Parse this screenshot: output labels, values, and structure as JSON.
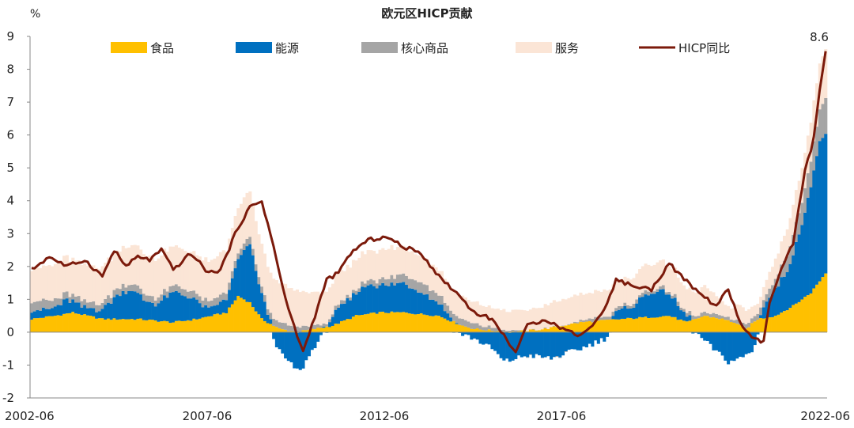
{
  "chart_data": {
    "type": "bar",
    "subtype": "stacked-bar-with-line",
    "title": "欧元区HICP贡献",
    "unit_label": "%",
    "ylim": [
      -2,
      9
    ],
    "yticks": [
      -2,
      -1,
      0,
      1,
      2,
      3,
      4,
      5,
      6,
      7,
      8,
      9
    ],
    "x_start": "2002-06",
    "x_end": "2022-06",
    "xtick_labels": [
      "2002-06",
      "2007-06",
      "2012-06",
      "2017-06",
      "2022-06"
    ],
    "grid": false,
    "legend_position": "top",
    "last_value_label": "8.6",
    "series": [
      {
        "name": "食品",
        "kind": "bar",
        "color": "#FFC000",
        "anchors": [
          [
            0,
            0.4
          ],
          [
            8,
            0.5
          ],
          [
            14,
            0.6
          ],
          [
            24,
            0.4
          ],
          [
            36,
            0.4
          ],
          [
            48,
            0.3
          ],
          [
            56,
            0.4
          ],
          [
            66,
            0.6
          ],
          [
            70,
            1.1
          ],
          [
            74,
            0.9
          ],
          [
            78,
            0.4
          ],
          [
            84,
            0.1
          ],
          [
            90,
            0.0
          ],
          [
            102,
            0.2
          ],
          [
            110,
            0.5
          ],
          [
            118,
            0.6
          ],
          [
            126,
            0.6
          ],
          [
            138,
            0.5
          ],
          [
            146,
            0.2
          ],
          [
            150,
            0.1
          ],
          [
            162,
            0.0
          ],
          [
            174,
            0.1
          ],
          [
            186,
            0.3
          ],
          [
            200,
            0.4
          ],
          [
            216,
            0.5
          ],
          [
            222,
            0.3
          ],
          [
            228,
            0.5
          ],
          [
            234,
            0.4
          ],
          [
            238,
            0.3
          ],
          [
            242,
            0.1
          ],
          [
            246,
            0.4
          ],
          [
            252,
            0.5
          ],
          [
            258,
            0.8
          ],
          [
            264,
            1.2
          ],
          [
            269,
            1.8
          ]
        ]
      },
      {
        "name": "能源",
        "kind": "bar",
        "color": "#0070C0",
        "anchors": [
          [
            0,
            0.3
          ],
          [
            6,
            0.2
          ],
          [
            12,
            0.4
          ],
          [
            18,
            0.2
          ],
          [
            24,
            0.3
          ],
          [
            30,
            0.8
          ],
          [
            34,
            0.9
          ],
          [
            38,
            0.6
          ],
          [
            42,
            0.5
          ],
          [
            48,
            0.9
          ],
          [
            54,
            0.7
          ],
          [
            60,
            0.2
          ],
          [
            66,
            0.4
          ],
          [
            70,
            1.1
          ],
          [
            74,
            1.8
          ],
          [
            76,
            1.2
          ],
          [
            80,
            0.3
          ],
          [
            84,
            -0.6
          ],
          [
            88,
            -1.0
          ],
          [
            91,
            -1.2
          ],
          [
            96,
            -0.4
          ],
          [
            102,
            0.3
          ],
          [
            108,
            0.6
          ],
          [
            114,
            0.9
          ],
          [
            120,
            0.8
          ],
          [
            126,
            0.9
          ],
          [
            132,
            0.7
          ],
          [
            138,
            0.4
          ],
          [
            144,
            0.0
          ],
          [
            150,
            -0.2
          ],
          [
            156,
            -0.5
          ],
          [
            160,
            -0.9
          ],
          [
            168,
            -0.7
          ],
          [
            176,
            -0.8
          ],
          [
            186,
            -0.5
          ],
          [
            194,
            -0.2
          ],
          [
            198,
            0.2
          ],
          [
            204,
            0.4
          ],
          [
            210,
            0.8
          ],
          [
            216,
            0.7
          ],
          [
            220,
            0.3
          ],
          [
            226,
            -0.1
          ],
          [
            232,
            -0.6
          ],
          [
            236,
            -0.9
          ],
          [
            240,
            -0.8
          ],
          [
            244,
            -0.6
          ],
          [
            248,
            0.4
          ],
          [
            252,
            0.8
          ],
          [
            256,
            1.2
          ],
          [
            260,
            2.0
          ],
          [
            264,
            3.3
          ],
          [
            267,
            4.2
          ],
          [
            269,
            4.3
          ]
        ]
      },
      {
        "name": "核心商品",
        "kind": "bar",
        "color": "#A5A5A5",
        "anchors": [
          [
            0,
            0.3
          ],
          [
            12,
            0.2
          ],
          [
            24,
            0.2
          ],
          [
            36,
            0.2
          ],
          [
            48,
            0.2
          ],
          [
            60,
            0.2
          ],
          [
            72,
            0.2
          ],
          [
            84,
            0.2
          ],
          [
            96,
            0.1
          ],
          [
            108,
            0.1
          ],
          [
            120,
            0.2
          ],
          [
            132,
            0.3
          ],
          [
            144,
            0.2
          ],
          [
            156,
            0.1
          ],
          [
            168,
            0.0
          ],
          [
            180,
            0.0
          ],
          [
            192,
            0.1
          ],
          [
            204,
            0.1
          ],
          [
            216,
            0.1
          ],
          [
            228,
            0.1
          ],
          [
            240,
            0.1
          ],
          [
            246,
            0.2
          ],
          [
            252,
            0.3
          ],
          [
            258,
            0.6
          ],
          [
            264,
            0.8
          ],
          [
            269,
            1.1
          ]
        ]
      },
      {
        "name": "服务",
        "kind": "bar",
        "color": "#FBE5D6",
        "anchors": [
          [
            0,
            1.0
          ],
          [
            12,
            1.1
          ],
          [
            24,
            1.1
          ],
          [
            36,
            1.2
          ],
          [
            48,
            1.2
          ],
          [
            60,
            1.2
          ],
          [
            66,
            1.3
          ],
          [
            72,
            1.4
          ],
          [
            78,
            1.3
          ],
          [
            84,
            1.2
          ],
          [
            96,
            1.0
          ],
          [
            108,
            0.9
          ],
          [
            120,
            0.9
          ],
          [
            132,
            0.8
          ],
          [
            144,
            0.7
          ],
          [
            156,
            0.6
          ],
          [
            168,
            0.6
          ],
          [
            180,
            0.8
          ],
          [
            190,
            0.8
          ],
          [
            204,
            0.8
          ],
          [
            216,
            0.8
          ],
          [
            224,
            0.7
          ],
          [
            228,
            0.8
          ],
          [
            236,
            0.3
          ],
          [
            240,
            0.5
          ],
          [
            246,
            0.3
          ],
          [
            252,
            0.6
          ],
          [
            258,
            0.9
          ],
          [
            264,
            1.2
          ],
          [
            269,
            1.5
          ]
        ]
      },
      {
        "name": "HICP同比",
        "kind": "line",
        "color": "#7B1A0B",
        "anchors": [
          [
            0,
            1.9
          ],
          [
            6,
            2.3
          ],
          [
            12,
            2.0
          ],
          [
            18,
            2.2
          ],
          [
            24,
            1.7
          ],
          [
            28,
            2.5
          ],
          [
            32,
            2.0
          ],
          [
            36,
            2.3
          ],
          [
            40,
            2.2
          ],
          [
            44,
            2.5
          ],
          [
            48,
            1.9
          ],
          [
            54,
            2.4
          ],
          [
            60,
            1.8
          ],
          [
            64,
            1.9
          ],
          [
            70,
            3.2
          ],
          [
            74,
            3.8
          ],
          [
            78,
            4.0
          ],
          [
            82,
            2.6
          ],
          [
            86,
            1.0
          ],
          [
            90,
            -0.1
          ],
          [
            92,
            -0.6
          ],
          [
            96,
            0.5
          ],
          [
            100,
            1.6
          ],
          [
            104,
            1.8
          ],
          [
            108,
            2.4
          ],
          [
            114,
            2.8
          ],
          [
            120,
            2.9
          ],
          [
            126,
            2.6
          ],
          [
            132,
            2.4
          ],
          [
            138,
            1.7
          ],
          [
            144,
            1.2
          ],
          [
            150,
            0.6
          ],
          [
            156,
            0.4
          ],
          [
            160,
            -0.1
          ],
          [
            164,
            -0.6
          ],
          [
            168,
            0.2
          ],
          [
            174,
            0.4
          ],
          [
            180,
            0.1
          ],
          [
            186,
            -0.1
          ],
          [
            192,
            0.4
          ],
          [
            196,
            1.1
          ],
          [
            198,
            1.6
          ],
          [
            204,
            1.4
          ],
          [
            210,
            1.3
          ],
          [
            216,
            2.1
          ],
          [
            220,
            1.7
          ],
          [
            226,
            1.2
          ],
          [
            232,
            0.8
          ],
          [
            236,
            1.3
          ],
          [
            240,
            0.3
          ],
          [
            244,
            -0.2
          ],
          [
            248,
            -0.3
          ],
          [
            250,
            0.9
          ],
          [
            254,
            1.9
          ],
          [
            258,
            2.7
          ],
          [
            262,
            4.9
          ],
          [
            265,
            5.9
          ],
          [
            267,
            7.4
          ],
          [
            269,
            8.6
          ]
        ]
      }
    ]
  },
  "watermark": "2022-06"
}
